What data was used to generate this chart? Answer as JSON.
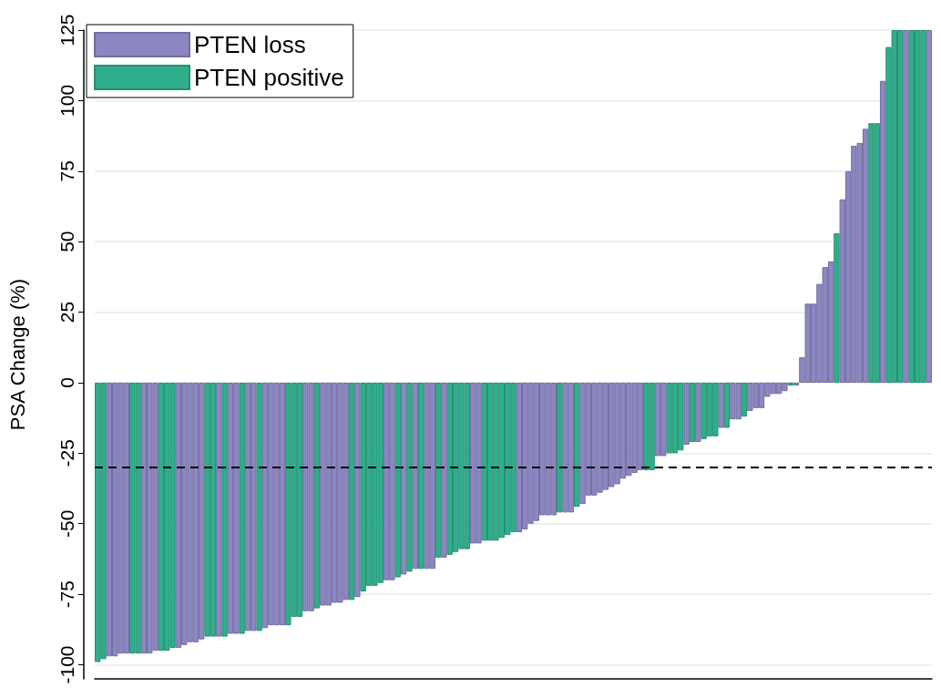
{
  "chart_data": {
    "type": "bar",
    "ylabel": "PSA Change (%)",
    "categories": [
      null,
      null,
      null,
      null,
      null,
      null,
      null,
      null,
      null,
      null,
      null,
      null,
      null,
      null,
      null,
      null,
      null,
      null,
      null,
      null,
      null,
      null,
      null,
      null,
      null,
      null,
      null,
      null,
      null,
      null,
      null,
      null,
      null,
      null,
      null,
      null,
      null,
      null,
      null,
      null,
      null,
      null,
      null,
      null,
      null,
      null,
      null,
      null,
      null,
      null,
      null,
      null,
      null,
      null,
      null,
      null,
      null,
      null,
      null,
      null,
      null,
      null,
      null,
      null,
      null,
      null,
      null,
      null,
      null,
      null,
      null,
      null,
      null,
      null,
      null,
      null,
      null,
      null,
      null,
      null,
      null,
      null,
      null,
      null,
      null,
      null,
      null,
      null,
      null,
      null,
      null,
      null,
      null,
      null,
      null,
      null,
      null,
      null,
      null,
      null,
      null,
      null,
      null,
      null,
      null,
      null,
      null,
      null,
      null,
      null,
      null,
      null,
      null,
      null,
      null,
      null,
      null,
      null,
      null,
      null,
      null,
      null,
      null,
      null,
      null,
      null,
      null,
      null,
      null,
      null,
      null,
      null,
      null,
      null,
      null,
      null,
      null,
      null,
      null,
      null,
      null,
      null,
      null,
      null,
      null
    ],
    "series": [
      {
        "name": "PTEN loss",
        "color": "#8c86c2",
        "values": [
          null,
          null,
          -97,
          -97,
          -96,
          -96,
          null,
          null,
          -96,
          -96,
          -95,
          null,
          null,
          null,
          -94,
          -93,
          -92,
          -92,
          -91,
          null,
          null,
          -90,
          null,
          -89,
          -89,
          null,
          -88,
          -88,
          null,
          -87,
          -86,
          -86,
          -86,
          null,
          null,
          null,
          -81,
          -81,
          null,
          -79,
          -79,
          -78,
          -78,
          -77,
          null,
          -76,
          null,
          null,
          null,
          null,
          -70,
          -70,
          null,
          -68,
          null,
          -66,
          null,
          -66,
          -66,
          null,
          -62,
          null,
          null,
          null,
          null,
          -57,
          -57,
          null,
          null,
          null,
          null,
          null,
          null,
          -53,
          -52,
          -50,
          -49,
          -47,
          -47,
          -47,
          null,
          -46,
          -46,
          null,
          -43,
          -40,
          -40,
          -39,
          -38,
          -37,
          -36,
          -34,
          -33,
          -32,
          -31,
          null,
          null,
          -26,
          -26,
          null,
          null,
          null,
          -22,
          null,
          -21,
          null,
          null,
          null,
          -16,
          null,
          -13,
          -13,
          null,
          -10,
          -9,
          -9,
          -5,
          -4,
          -4,
          -3,
          null,
          -1,
          9,
          28,
          28,
          35,
          41,
          43,
          null,
          65,
          75,
          84,
          85,
          90,
          null,
          null,
          107,
          null,
          null,
          null,
          125,
          null,
          null,
          null,
          125
        ]
      },
      {
        "name": "PTEN positive",
        "color": "#2fae8c",
        "values": [
          -99,
          -98,
          null,
          null,
          null,
          null,
          -96,
          -96,
          null,
          null,
          null,
          -95,
          -95,
          -94,
          null,
          null,
          null,
          null,
          null,
          -90,
          -90,
          null,
          -90,
          null,
          null,
          -89,
          null,
          null,
          -88,
          null,
          null,
          null,
          null,
          -86,
          -83,
          -83,
          null,
          null,
          -80,
          null,
          null,
          null,
          null,
          null,
          -77,
          null,
          -74,
          -72,
          -72,
          -71,
          null,
          null,
          -69,
          null,
          -67,
          null,
          -66,
          null,
          null,
          -62,
          null,
          -61,
          -60,
          -59,
          -59,
          null,
          null,
          -56,
          -56,
          -56,
          -55,
          -54,
          -53,
          null,
          null,
          null,
          null,
          null,
          null,
          null,
          -46,
          null,
          null,
          -44,
          null,
          null,
          null,
          null,
          null,
          null,
          null,
          null,
          null,
          null,
          null,
          -31,
          -31,
          null,
          null,
          -25,
          -25,
          -24,
          null,
          -21,
          null,
          -20,
          -19,
          -19,
          null,
          -16,
          null,
          null,
          -12,
          null,
          null,
          null,
          null,
          null,
          null,
          null,
          -1,
          null,
          null,
          null,
          null,
          null,
          null,
          null,
          53,
          null,
          null,
          null,
          null,
          null,
          92,
          92,
          null,
          119,
          125,
          125,
          null,
          125,
          125,
          125,
          null
        ]
      }
    ],
    "ylim": [
      -105,
      125
    ],
    "yticks": [
      -100,
      -75,
      -50,
      -25,
      0,
      25,
      50,
      75,
      100,
      125
    ],
    "grid": "y",
    "legend": "top left",
    "tick_labels": "y",
    "ref_lines": [
      {
        "axis": "y",
        "value": -30,
        "color": "#000000",
        "line_style": "dashed"
      }
    ]
  }
}
